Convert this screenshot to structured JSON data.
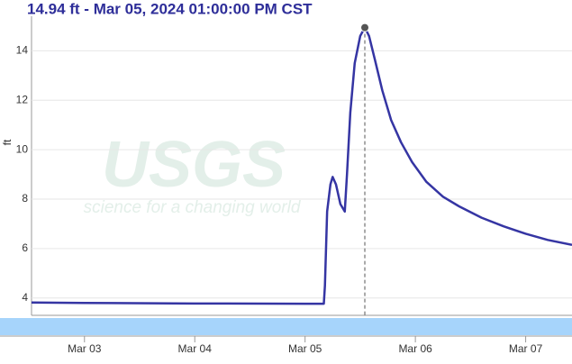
{
  "chart_data": {
    "type": "line",
    "title": "14.94 ft - Mar 05, 2024 01:00:00 PM CST",
    "y_label": "ft",
    "watermark": {
      "logo": "USGS",
      "tagline": "science for a changing world"
    },
    "x": [
      2.52,
      3.0,
      4.0,
      5.0,
      5.17,
      5.18,
      5.2,
      5.23,
      5.25,
      5.28,
      5.32,
      5.36,
      5.38,
      5.41,
      5.45,
      5.5,
      5.5417,
      5.58,
      5.63,
      5.7,
      5.78,
      5.87,
      5.97,
      6.1,
      6.25,
      6.4,
      6.6,
      6.8,
      7.0,
      7.2,
      7.42
    ],
    "values": [
      3.82,
      3.8,
      3.78,
      3.77,
      3.77,
      4.5,
      7.5,
      8.6,
      8.9,
      8.6,
      7.8,
      7.5,
      9.0,
      11.5,
      13.5,
      14.6,
      14.94,
      14.6,
      13.7,
      12.4,
      11.2,
      10.3,
      9.5,
      8.7,
      8.1,
      7.7,
      7.25,
      6.9,
      6.6,
      6.35,
      6.15
    ],
    "color": "#3535a3",
    "xlim": [
      2.52,
      7.42
    ],
    "xticks": [
      {
        "value": 3,
        "label": "Mar 03"
      },
      {
        "value": 4,
        "label": "Mar 04"
      },
      {
        "value": 5,
        "label": "Mar 05"
      },
      {
        "value": 6,
        "label": "Mar 06"
      },
      {
        "value": 7,
        "label": "Mar 07"
      }
    ],
    "ylim": [
      3.3,
      15.4
    ],
    "yticks": [
      4,
      6,
      8,
      10,
      12,
      14
    ],
    "grid": true
  }
}
